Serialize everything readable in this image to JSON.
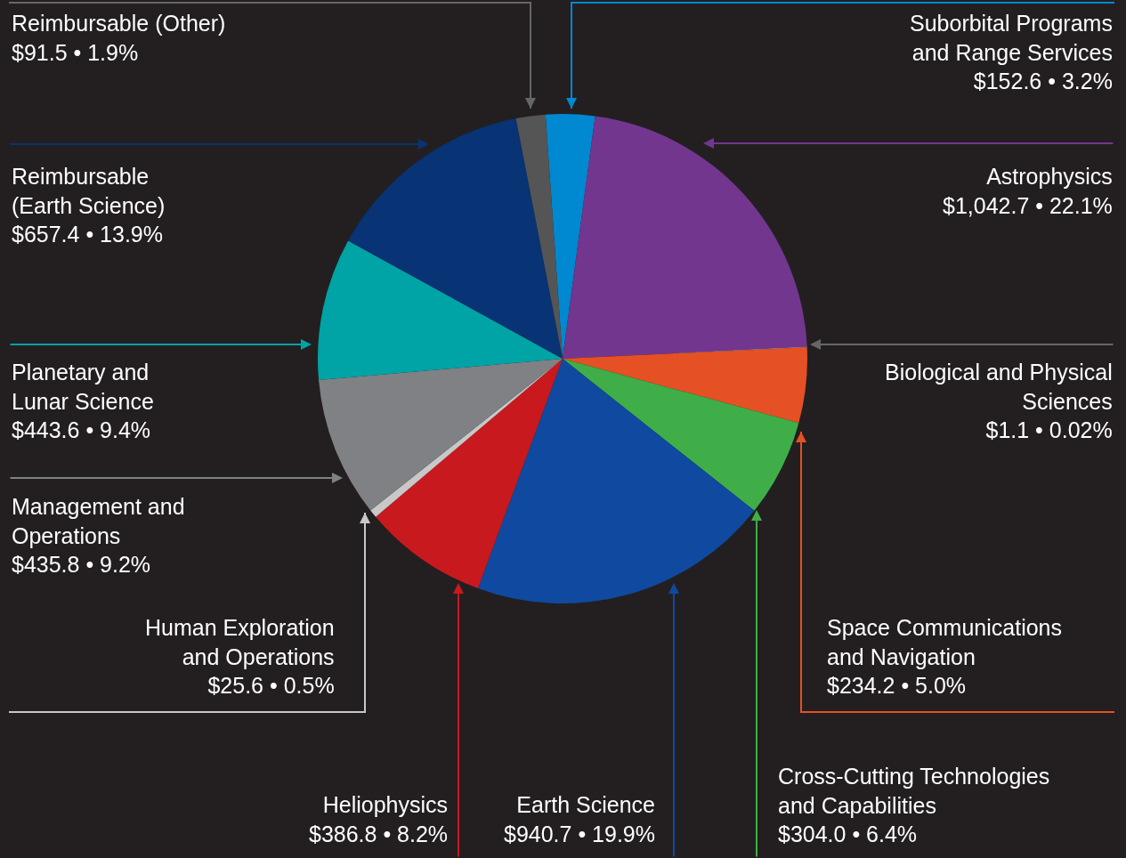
{
  "chart_data": {
    "type": "pie",
    "categories": [
      "Suborbital Programs and Range Services",
      "Astrophysics",
      "Biological and Physical Sciences",
      "Space Communications and Navigation",
      "Cross-Cutting Technologies and Capabilities",
      "Earth Science",
      "Heliophysics",
      "Human Exploration and Operations",
      "Management and Operations",
      "Planetary and Lunar Science",
      "Reimbursable (Earth Science)",
      "Reimbursable (Other)"
    ],
    "values": [
      152.6,
      1042.7,
      1.1,
      234.2,
      304.0,
      940.7,
      386.8,
      25.6,
      435.8,
      443.6,
      657.4,
      91.5
    ],
    "value_labels": [
      "$152.6 • 3.2%",
      "$1,042.7 • 22.1%",
      "$1.1 • 0.02%",
      "$234.2 • 5.0%",
      "$304.0 • 6.4%",
      "$940.7 • 19.9%",
      "$386.8 • 8.2%",
      "$25.6 • 0.5%",
      "$435.8 • 9.2%",
      "$443.6 • 9.4%",
      "$657.4 • 13.9%",
      "$91.5 • 1.9%"
    ],
    "colors": [
      "#0088d1",
      "#72368f",
      "#d0d0d0",
      "#e55024",
      "#3fae49",
      "#0f4aa0",
      "#c8191f",
      "#c8c8c8",
      "#808184",
      "#00a3a6",
      "#083374",
      "#555555"
    ]
  }
}
